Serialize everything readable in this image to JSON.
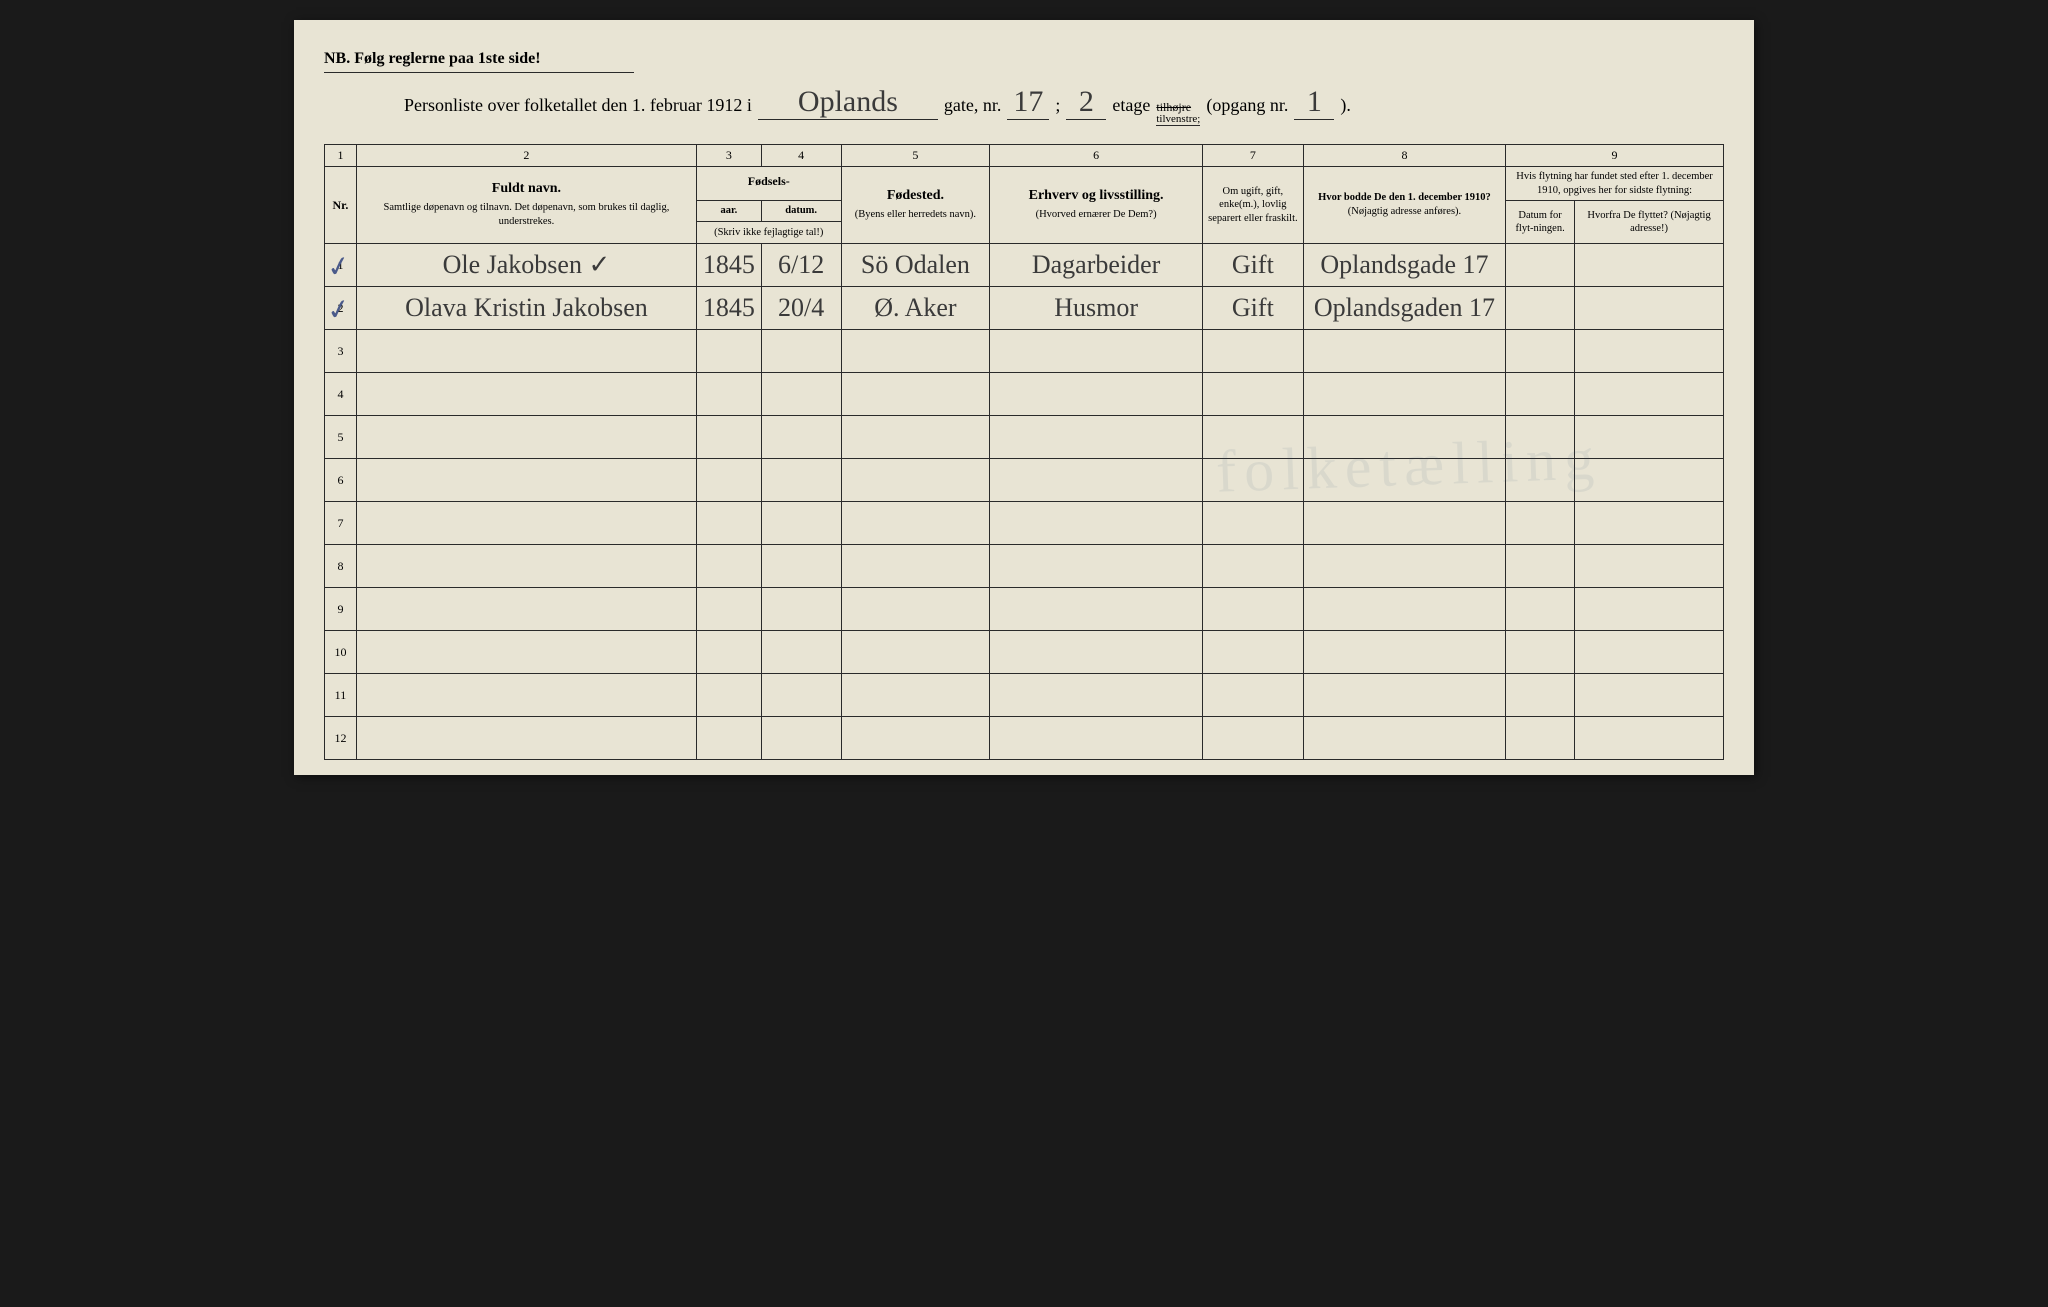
{
  "colors": {
    "paper": "#e8e4d4",
    "ink": "#2a2a2a",
    "handwriting": "#3a3a3a",
    "checkmark": "#4a5a8a",
    "background": "#1a1a1a"
  },
  "nb_text": "NB.   Følg reglerne paa 1ste side!",
  "title": {
    "prefix": "Personliste over folketallet den 1. februar 1912 i",
    "street_hw": "Oplands",
    "gate_label": "gate, nr.",
    "gate_nr_hw": "17",
    "semicolon": ";",
    "etage_hw": "2",
    "etage_label": "etage",
    "side_top": "tilhøjre",
    "side_bottom": "tilvenstre;",
    "opgang_label": "(opgang nr.",
    "opgang_hw": "1",
    "close": ")."
  },
  "col_numbers": [
    "1",
    "2",
    "3",
    "4",
    "5",
    "6",
    "7",
    "8",
    "9"
  ],
  "headers": {
    "nr": "Nr.",
    "name_bold": "Fuldt navn.",
    "name_small": "Samtlige døpenavn og tilnavn. Det døpenavn, som brukes til daglig, understrekes.",
    "fodsels": "Fødsels-",
    "aar": "aar.",
    "datum": "datum.",
    "skriv": "(Skriv ikke fejlagtige tal!)",
    "fodested_bold": "Fødested.",
    "fodested_small": "(Byens eller herredets navn).",
    "erhverv_bold": "Erhverv og livsstilling.",
    "erhverv_small": "(Hvorved ernærer De Dem?)",
    "marital": "Om ugift, gift, enke(m.), lovlig separert eller fraskilt.",
    "addr_top": "Hvor bodde De den 1. december 1910?",
    "addr_small": "(Nøjagtig adresse anføres).",
    "move_top": "Hvis flytning har fundet sted efter 1. december 1910, opgives her for sidste flytning:",
    "move_date": "Datum for flyt-ningen.",
    "move_from": "Hvorfra De flyttet? (Nøjagtig adresse!)"
  },
  "rows": [
    {
      "nr": "1",
      "check": true,
      "name": "Ole Jakobsen ✓",
      "year": "1845",
      "date": "6/12",
      "place": "Sö Odalen",
      "occ": "Dagarbeider",
      "marital": "Gift",
      "addr": "Oplandsgade 17",
      "mdate": "",
      "from": ""
    },
    {
      "nr": "2",
      "check": true,
      "name": "Olava Kristin Jakobsen",
      "year": "1845",
      "date": "20/4",
      "place": "Ø. Aker",
      "occ": "Husmor",
      "marital": "Gift",
      "addr": "Oplandsgaden 17",
      "mdate": "",
      "from": ""
    },
    {
      "nr": "3",
      "check": false,
      "name": "",
      "year": "",
      "date": "",
      "place": "",
      "occ": "",
      "marital": "",
      "addr": "",
      "mdate": "",
      "from": ""
    },
    {
      "nr": "4",
      "check": false,
      "name": "",
      "year": "",
      "date": "",
      "place": "",
      "occ": "",
      "marital": "",
      "addr": "",
      "mdate": "",
      "from": ""
    },
    {
      "nr": "5",
      "check": false,
      "name": "",
      "year": "",
      "date": "",
      "place": "",
      "occ": "",
      "marital": "",
      "addr": "",
      "mdate": "",
      "from": ""
    },
    {
      "nr": "6",
      "check": false,
      "name": "",
      "year": "",
      "date": "",
      "place": "",
      "occ": "",
      "marital": "",
      "addr": "",
      "mdate": "",
      "from": ""
    },
    {
      "nr": "7",
      "check": false,
      "name": "",
      "year": "",
      "date": "",
      "place": "",
      "occ": "",
      "marital": "",
      "addr": "",
      "mdate": "",
      "from": ""
    },
    {
      "nr": "8",
      "check": false,
      "name": "",
      "year": "",
      "date": "",
      "place": "",
      "occ": "",
      "marital": "",
      "addr": "",
      "mdate": "",
      "from": ""
    },
    {
      "nr": "9",
      "check": false,
      "name": "",
      "year": "",
      "date": "",
      "place": "",
      "occ": "",
      "marital": "",
      "addr": "",
      "mdate": "",
      "from": ""
    },
    {
      "nr": "10",
      "check": false,
      "name": "",
      "year": "",
      "date": "",
      "place": "",
      "occ": "",
      "marital": "",
      "addr": "",
      "mdate": "",
      "from": ""
    },
    {
      "nr": "11",
      "check": false,
      "name": "",
      "year": "",
      "date": "",
      "place": "",
      "occ": "",
      "marital": "",
      "addr": "",
      "mdate": "",
      "from": ""
    },
    {
      "nr": "12",
      "check": false,
      "name": "",
      "year": "",
      "date": "",
      "place": "",
      "occ": "",
      "marital": "",
      "addr": "",
      "mdate": "",
      "from": ""
    }
  ]
}
